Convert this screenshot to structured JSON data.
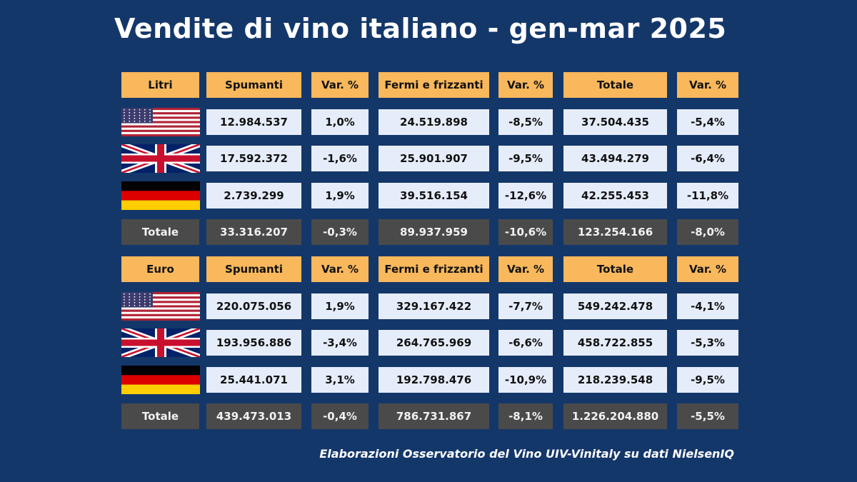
{
  "title": "Vendite di vino italiano - gen-mar 2025",
  "footer": "Elaborazioni Osservatorio del Vino UIV-Vinitaly su dati NielsenIQ",
  "colors": {
    "background": "#14376a",
    "header": "#f9b85c",
    "value_cell": "#e6edfa",
    "total_row": "#4a4a4a"
  },
  "chart_data": {
    "type": "table",
    "sections": [
      {
        "unit": "Litri",
        "columns": [
          "Spumanti",
          "Var. %",
          "Fermi e frizzanti",
          "Var. %",
          "Totale",
          "Var. %"
        ],
        "rows": [
          {
            "country": "us-flag-icon",
            "label": "",
            "values": [
              "12.984.537",
              "1,0%",
              "24.519.898",
              "-8,5%",
              "37.504.435",
              "-5,4%"
            ]
          },
          {
            "country": "uk-flag-icon",
            "label": "",
            "values": [
              "17.592.372",
              "-1,6%",
              "25.901.907",
              "-9,5%",
              "43.494.279",
              "-6,4%"
            ]
          },
          {
            "country": "de-flag-icon",
            "label": "",
            "values": [
              "2.739.299",
              "1,9%",
              "39.516.154",
              "-12,6%",
              "42.255.453",
              "-11,8%"
            ]
          },
          {
            "country": "total",
            "label": "Totale",
            "values": [
              "33.316.207",
              "-0,3%",
              "89.937.959",
              "-10,6%",
              "123.254.166",
              "-8,0%"
            ]
          }
        ]
      },
      {
        "unit": "Euro",
        "columns": [
          "Spumanti",
          "Var. %",
          "Fermi e frizzanti",
          "Var. %",
          "Totale",
          "Var. %"
        ],
        "rows": [
          {
            "country": "us-flag-icon",
            "label": "",
            "values": [
              "220.075.056",
              "1,9%",
              "329.167.422",
              "-7,7%",
              "549.242.478",
              "-4,1%"
            ]
          },
          {
            "country": "uk-flag-icon",
            "label": "",
            "values": [
              "193.956.886",
              "-3,4%",
              "264.765.969",
              "-6,6%",
              "458.722.855",
              "-5,3%"
            ]
          },
          {
            "country": "de-flag-icon",
            "label": "",
            "values": [
              "25.441.071",
              "3,1%",
              "192.798.476",
              "-10,9%",
              "218.239.548",
              "-9,5%"
            ]
          },
          {
            "country": "total",
            "label": "Totale",
            "values": [
              "439.473.013",
              "-0,4%",
              "786.731.867",
              "-8,1%",
              "1.226.204.880",
              "-5,5%"
            ]
          }
        ]
      }
    ]
  }
}
